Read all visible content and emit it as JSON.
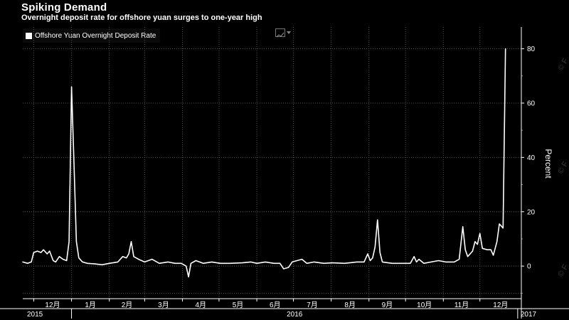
{
  "header": {
    "title": "Spiking Demand",
    "subtitle": "Overnight deposit rate for offshore yuan surges to one-year high"
  },
  "legend": {
    "series_label": "Offshore Yuan Overnight Deposit Rate",
    "swatch_color": "#ffffff",
    "chart_type_icon": "line-chart-icon"
  },
  "colors": {
    "background": "#000000",
    "line": "#ffffff",
    "grid": "#555555"
  },
  "chart_data": {
    "type": "line",
    "title": "Spiking Demand",
    "subtitle": "Overnight deposit rate for offshore yuan surges to one-year high",
    "ylabel": "Percent",
    "ylim": [
      -12,
      88
    ],
    "yticks": [
      0,
      20,
      40,
      60,
      80
    ],
    "grid": true,
    "legend_position": "top-left",
    "y_axis_side": "right",
    "xlim": [
      "2015-11-22",
      "2017-01-04"
    ],
    "month_labels": [
      {
        "date": "2015-12-01",
        "label": "12月"
      },
      {
        "date": "2016-01-01",
        "label": "1月"
      },
      {
        "date": "2016-02-01",
        "label": "2月"
      },
      {
        "date": "2016-03-01",
        "label": "3月"
      },
      {
        "date": "2016-04-01",
        "label": "4月"
      },
      {
        "date": "2016-05-01",
        "label": "5月"
      },
      {
        "date": "2016-06-01",
        "label": "6月"
      },
      {
        "date": "2016-07-01",
        "label": "7月"
      },
      {
        "date": "2016-08-01",
        "label": "8月"
      },
      {
        "date": "2016-09-01",
        "label": "9月"
      },
      {
        "date": "2016-10-01",
        "label": "10月"
      },
      {
        "date": "2016-11-01",
        "label": "11月"
      },
      {
        "date": "2016-12-01",
        "label": "12月"
      }
    ],
    "year_labels": [
      {
        "date": "2015-11-22",
        "label": "2015"
      },
      {
        "date": "2016-06-15",
        "label": "2016"
      },
      {
        "date": "2017-01-01",
        "label": "2017"
      }
    ],
    "series": [
      {
        "name": "Offshore Yuan Overnight Deposit Rate",
        "points": [
          [
            "2015-11-22",
            1.5
          ],
          [
            "2015-11-26",
            1.0
          ],
          [
            "2015-11-29",
            1.5
          ],
          [
            "2015-12-01",
            5.0
          ],
          [
            "2015-12-04",
            5.5
          ],
          [
            "2015-12-07",
            5.0
          ],
          [
            "2015-12-09",
            6.0
          ],
          [
            "2015-12-12",
            4.5
          ],
          [
            "2015-12-14",
            5.5
          ],
          [
            "2015-12-17",
            2.0
          ],
          [
            "2015-12-19",
            1.5
          ],
          [
            "2015-12-22",
            3.5
          ],
          [
            "2015-12-25",
            2.5
          ],
          [
            "2015-12-28",
            2.0
          ],
          [
            "2015-12-30",
            9.0
          ],
          [
            "2016-01-01",
            66.0
          ],
          [
            "2016-01-03",
            38.0
          ],
          [
            "2016-01-05",
            9.0
          ],
          [
            "2016-01-07",
            3.0
          ],
          [
            "2016-01-10",
            1.5
          ],
          [
            "2016-01-14",
            1.0
          ],
          [
            "2016-01-20",
            0.8
          ],
          [
            "2016-01-26",
            0.5
          ],
          [
            "2016-02-01",
            1.0
          ],
          [
            "2016-02-08",
            1.5
          ],
          [
            "2016-02-12",
            3.5
          ],
          [
            "2016-02-15",
            3.0
          ],
          [
            "2016-02-17",
            4.5
          ],
          [
            "2016-02-19",
            9.0
          ],
          [
            "2016-02-21",
            3.5
          ],
          [
            "2016-02-25",
            2.5
          ],
          [
            "2016-03-01",
            1.5
          ],
          [
            "2016-03-07",
            2.5
          ],
          [
            "2016-03-13",
            1.0
          ],
          [
            "2016-03-20",
            1.5
          ],
          [
            "2016-03-26",
            1.0
          ],
          [
            "2016-03-31",
            1.0
          ],
          [
            "2016-04-04",
            0.0
          ],
          [
            "2016-04-06",
            -4.0
          ],
          [
            "2016-04-08",
            1.0
          ],
          [
            "2016-04-12",
            2.0
          ],
          [
            "2016-04-18",
            1.0
          ],
          [
            "2016-04-25",
            1.5
          ],
          [
            "2016-05-02",
            1.0
          ],
          [
            "2016-05-10",
            1.0
          ],
          [
            "2016-05-20",
            1.2
          ],
          [
            "2016-05-27",
            1.5
          ],
          [
            "2016-06-01",
            1.0
          ],
          [
            "2016-06-08",
            1.5
          ],
          [
            "2016-06-15",
            1.0
          ],
          [
            "2016-06-20",
            1.0
          ],
          [
            "2016-06-23",
            -1.0
          ],
          [
            "2016-06-27",
            -0.5
          ],
          [
            "2016-06-30",
            1.5
          ],
          [
            "2016-07-04",
            2.0
          ],
          [
            "2016-07-08",
            2.5
          ],
          [
            "2016-07-12",
            1.0
          ],
          [
            "2016-07-18",
            1.5
          ],
          [
            "2016-07-26",
            1.0
          ],
          [
            "2016-08-02",
            1.2
          ],
          [
            "2016-08-12",
            1.0
          ],
          [
            "2016-08-22",
            1.5
          ],
          [
            "2016-08-28",
            1.5
          ],
          [
            "2016-08-31",
            4.5
          ],
          [
            "2016-09-02",
            2.0
          ],
          [
            "2016-09-04",
            3.0
          ],
          [
            "2016-09-06",
            7.0
          ],
          [
            "2016-09-08",
            17.0
          ],
          [
            "2016-09-10",
            5.0
          ],
          [
            "2016-09-12",
            1.5
          ],
          [
            "2016-09-20",
            1.0
          ],
          [
            "2016-09-28",
            1.0
          ],
          [
            "2016-10-05",
            1.0
          ],
          [
            "2016-10-08",
            3.5
          ],
          [
            "2016-10-10",
            1.5
          ],
          [
            "2016-10-12",
            2.5
          ],
          [
            "2016-10-16",
            1.0
          ],
          [
            "2016-10-22",
            1.5
          ],
          [
            "2016-10-28",
            2.0
          ],
          [
            "2016-11-03",
            1.5
          ],
          [
            "2016-11-10",
            1.5
          ],
          [
            "2016-11-14",
            2.5
          ],
          [
            "2016-11-17",
            14.5
          ],
          [
            "2016-11-19",
            6.0
          ],
          [
            "2016-11-21",
            3.5
          ],
          [
            "2016-11-25",
            5.5
          ],
          [
            "2016-11-27",
            9.0
          ],
          [
            "2016-11-29",
            8.0
          ],
          [
            "2016-12-01",
            12.0
          ],
          [
            "2016-12-03",
            6.5
          ],
          [
            "2016-12-07",
            6.0
          ],
          [
            "2016-12-10",
            6.0
          ],
          [
            "2016-12-12",
            4.0
          ],
          [
            "2016-12-15",
            9.0
          ],
          [
            "2016-12-17",
            15.5
          ],
          [
            "2016-12-20",
            14.0
          ],
          [
            "2016-12-22",
            80.0
          ]
        ]
      }
    ]
  },
  "watermark": {
    "glyph": "© F"
  }
}
